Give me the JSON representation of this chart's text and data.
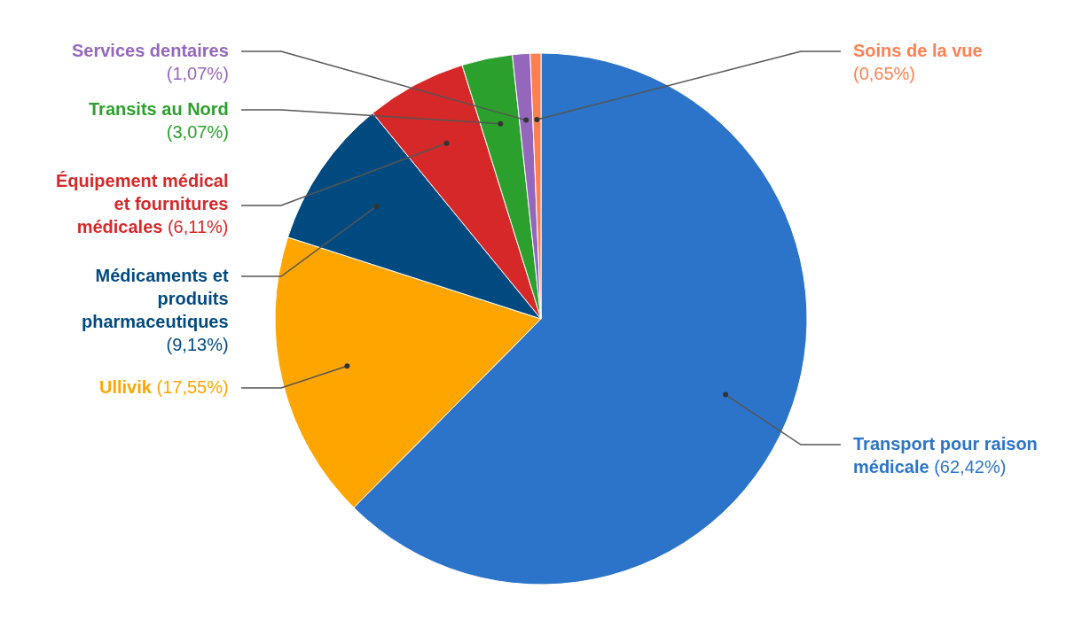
{
  "chart_data": {
    "type": "pie",
    "categories": [
      "Transport pour raison médicale",
      "Ullivik",
      "Médicaments et produits pharmaceutiques",
      "Équipement médical et fournitures médicales",
      "Transits au Nord",
      "Services dentaires",
      "Soins de la vue"
    ],
    "values": [
      62.42,
      17.55,
      9.13,
      6.11,
      3.07,
      1.07,
      0.65
    ],
    "value_labels": [
      "(62,42%)",
      "(17,55%)",
      "(9,13%)",
      "(6,11%)",
      "(3,07%)",
      "(1,07%)",
      "(0,65%)"
    ],
    "colors": [
      "#2b74c9",
      "#ffa500",
      "#004a80",
      "#d62828",
      "#2ca02c",
      "#9467bd",
      "#ff7f50"
    ]
  }
}
